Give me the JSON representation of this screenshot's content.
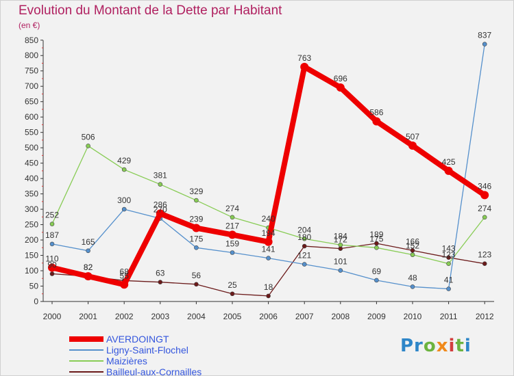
{
  "title": "Evolution du Montant de la Dette par Habitant",
  "unit": "(en €)",
  "logo": "Proxiti",
  "chart_data": {
    "type": "line",
    "x": [
      "2000",
      "2001",
      "2002",
      "2003",
      "2004",
      "2005",
      "2006",
      "2007",
      "2008",
      "2009",
      "2010",
      "2011",
      "2012"
    ],
    "yticks": [
      0,
      50,
      100,
      150,
      200,
      250,
      300,
      350,
      400,
      450,
      500,
      550,
      600,
      650,
      700,
      750,
      800,
      850
    ],
    "ylim": [
      0,
      860
    ],
    "grid": false,
    "legend_position": "bottom-left",
    "series": [
      {
        "name": "AVERDOINGT",
        "values": [
          110,
          82,
          55,
          286,
          239,
          217,
          194,
          763,
          696,
          586,
          507,
          425,
          346
        ],
        "color": "#ee0000",
        "width": 8,
        "labels": [
          "110",
          "82",
          "55",
          "286",
          "239",
          "217",
          "194",
          "763",
          "696",
          "586",
          "507",
          "425",
          "346"
        ]
      },
      {
        "name": "Ligny-Saint-Flochel",
        "values": [
          187,
          165,
          300,
          270,
          175,
          159,
          141,
          121,
          101,
          69,
          48,
          41,
          837
        ],
        "color": "#5590cc",
        "width": 1.3,
        "labels": [
          "187",
          "165",
          "300",
          "270",
          "175",
          "159",
          "141",
          "121",
          "101",
          "69",
          "48",
          "41",
          "837"
        ]
      },
      {
        "name": "Maizières",
        "values": [
          252,
          506,
          429,
          381,
          329,
          274,
          240,
          204,
          184,
          175,
          152,
          123,
          274
        ],
        "color": "#88cc55",
        "width": 1.3,
        "labels": [
          "252",
          "506",
          "429",
          "381",
          "329",
          "274",
          "240",
          "204",
          "184",
          "175",
          "152",
          "123",
          "274"
        ]
      },
      {
        "name": "Bailleul-aux-Cornailles",
        "values": [
          90,
          82,
          68,
          63,
          56,
          25,
          18,
          180,
          172,
          189,
          166,
          143,
          123
        ],
        "color": "#6b1a1a",
        "width": 1.3,
        "labels": [
          "90",
          "82",
          "68",
          "63",
          "56",
          "25",
          "18",
          "180",
          "172",
          "189",
          "166",
          "143",
          "123"
        ]
      }
    ]
  }
}
